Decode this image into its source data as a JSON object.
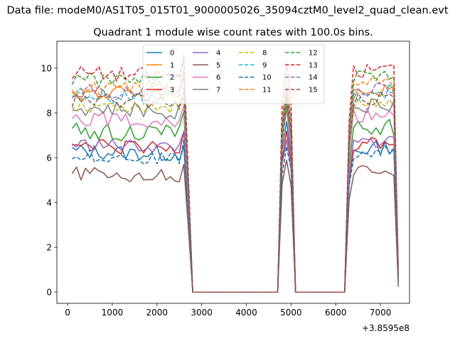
{
  "chart_data": {
    "type": "line",
    "suptitle": "Data file: modeM0/AS1T05_015T01_9000005026_35094cztM0_level2_quad_clean.evt",
    "title": "Quadrant 1 module wise count rates with 100.0s bins.",
    "xlabel": "",
    "ylabel": "",
    "x_offset_text": "+3.8595e8",
    "xlim": [
      -240,
      7650
    ],
    "ylim": [
      -0.5,
      11.2
    ],
    "x_ticks": [
      0,
      1000,
      2000,
      3000,
      4000,
      5000,
      6000,
      7000
    ],
    "y_ticks": [
      0,
      2,
      4,
      6,
      8,
      10
    ],
    "legend": {
      "location": "upper center",
      "columns": 4
    },
    "segments": [
      {
        "x_start": 100,
        "x_end": 2600,
        "step": 100
      },
      {
        "x_start": 2700,
        "x_end": 2800,
        "step": 100
      },
      {
        "x_start": 4700,
        "x_end": 5100,
        "step": 100
      },
      {
        "x_start": 6200,
        "x_end": 7400,
        "step": 100
      }
    ],
    "gap_value": 0,
    "series": [
      {
        "name": "0",
        "color": "#1f77b4",
        "dash": "solid",
        "base": 6.3,
        "amplitude": 0.35,
        "peak": 7.6,
        "tail": 0.8
      },
      {
        "name": "1",
        "color": "#ff7f0e",
        "dash": "solid",
        "base": 8.9,
        "amplitude": 0.35,
        "peak": 8.4,
        "tail": 0.9
      },
      {
        "name": "2",
        "color": "#2ca02c",
        "dash": "solid",
        "base": 7.2,
        "amplitude": 0.4,
        "peak": 8.8,
        "tail": 0.9
      },
      {
        "name": "3",
        "color": "#d62728",
        "dash": "solid",
        "base": 6.5,
        "amplitude": 0.35,
        "peak": 7.2,
        "tail": 0.8
      },
      {
        "name": "4",
        "color": "#9467bd",
        "dash": "solid",
        "base": 6.6,
        "amplitude": 0.3,
        "peak": 6.8,
        "tail": 0.8
      },
      {
        "name": "5",
        "color": "#8c564b",
        "dash": "solid",
        "base": 5.3,
        "amplitude": 0.3,
        "peak": 5.9,
        "tail": 0.45
      },
      {
        "name": "6",
        "color": "#e377c2",
        "dash": "solid",
        "base": 7.8,
        "amplitude": 0.35,
        "peak": 8.1,
        "tail": 0.9
      },
      {
        "name": "7",
        "color": "#7f7f7f",
        "dash": "solid",
        "base": 8.2,
        "amplitude": 0.35,
        "peak": 8.6,
        "tail": 0.95
      },
      {
        "name": "8",
        "color": "#bcbd22",
        "dash": "dashed",
        "base": 8.4,
        "amplitude": 0.35,
        "peak": 8.9,
        "tail": 0.95
      },
      {
        "name": "9",
        "color": "#17becf",
        "dash": "dashed",
        "base": 8.8,
        "amplitude": 0.35,
        "peak": 9.2,
        "tail": 1.0
      },
      {
        "name": "10",
        "color": "#1f77b4",
        "dash": "dashed",
        "base": 6.1,
        "amplitude": 0.3,
        "peak": 6.5,
        "tail": 0.7
      },
      {
        "name": "11",
        "color": "#ff7f0e",
        "dash": "dashed",
        "base": 9.1,
        "amplitude": 0.35,
        "peak": 9.4,
        "tail": 1.0
      },
      {
        "name": "12",
        "color": "#2ca02c",
        "dash": "dashed",
        "base": 9.5,
        "amplitude": 0.35,
        "peak": 8.3,
        "tail": 1.0
      },
      {
        "name": "13",
        "color": "#d62728",
        "dash": "dashed",
        "base": 9.8,
        "amplitude": 0.35,
        "peak": 10.2,
        "tail": 1.0
      },
      {
        "name": "14",
        "color": "#9467bd",
        "dash": "dashed",
        "base": 9.0,
        "amplitude": 0.35,
        "peak": 9.1,
        "tail": 0.9
      },
      {
        "name": "15",
        "color": "#8c564b",
        "dash": "dashed",
        "base": 8.6,
        "amplitude": 0.35,
        "peak": 8.7,
        "tail": 0.9
      }
    ]
  }
}
